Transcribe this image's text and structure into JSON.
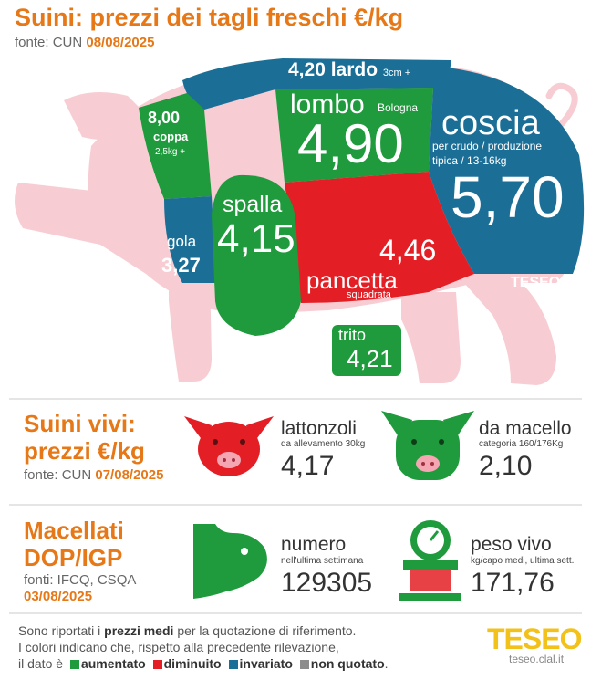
{
  "header": {
    "title": "Suini: prezzi dei tagli freschi €/kg",
    "source_label": "fonte: CUN",
    "source_date": "08/08/2025"
  },
  "cuts": {
    "lardo": {
      "value": "4,20",
      "name": "lardo",
      "detail": "3cm +"
    },
    "coppa": {
      "value": "8,00",
      "name": "coppa",
      "detail": "2,5kg +"
    },
    "lombo": {
      "name": "lombo",
      "detail": "Bologna",
      "value": "4,90"
    },
    "coscia": {
      "name": "coscia",
      "detail_line1": "per crudo / produzione",
      "detail_line2": "tipica / 13-16kg",
      "value": "5,70"
    },
    "gola": {
      "name": "gola",
      "value": "3,27"
    },
    "spalla": {
      "name": "spalla",
      "value": "4,15"
    },
    "pancetta": {
      "value": "4,46",
      "name": "pancetta",
      "detail": "squadrata"
    },
    "trito": {
      "name": "trito",
      "value": "4,21"
    },
    "watermark": "TESEO"
  },
  "live_pigs": {
    "title_line1": "Suini vivi:",
    "title_line2": "prezzi €/kg",
    "source_label": "fonte: CUN",
    "source_date": "07/08/2025",
    "lattonzoli": {
      "name": "lattonzoli",
      "detail": "da allevamento 30kg",
      "value": "4,17"
    },
    "macello": {
      "name": "da macello",
      "detail": "categoria 160/176Kg",
      "value": "2,10"
    }
  },
  "slaughtered": {
    "title_line1": "Macellati",
    "title_line2": "DOP/IGP",
    "source_label": "fonti: IFCQ, CSQA",
    "date": "03/08/2025",
    "numero": {
      "name": "numero",
      "detail": "nell'ultima settimana",
      "value": "129305"
    },
    "peso": {
      "name": "peso vivo",
      "detail": "kg/capo medi, ultima sett.",
      "value": "171,76"
    }
  },
  "footer": {
    "line1_pre": "Sono riportati i",
    "line1_bold": "prezzi medi",
    "line1_post": "per la quotazione di riferimento.",
    "line2": "I colori indicano che, rispetto alla precedente rilevazione,",
    "line3_pre": "il dato è",
    "legend": [
      {
        "label": "aumentato",
        "color": "#1f9a3c"
      },
      {
        "label": "diminuito",
        "color": "#e31e24"
      },
      {
        "label": "invariato",
        "color": "#1b6f97"
      },
      {
        "label": "non quotato",
        "color": "#8c8c8c"
      }
    ],
    "brand": "TESEO",
    "brand_url": "teseo.clal.it"
  },
  "colors": {
    "up": "#1f9a3c",
    "down": "#e31e24",
    "same": "#1b6f97",
    "pig_pink": "#f7cdd3",
    "accent": "#e67817"
  }
}
